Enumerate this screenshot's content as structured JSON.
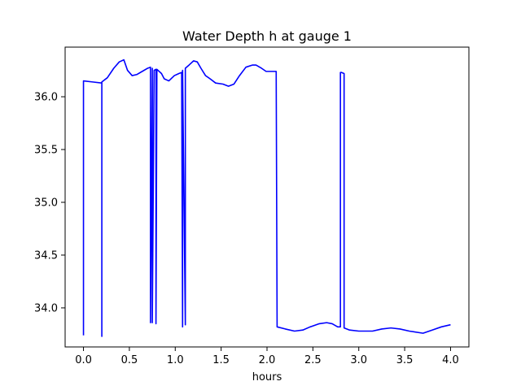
{
  "chart_data": {
    "type": "line",
    "title": "Water Depth h at gauge 1",
    "xlabel": "hours",
    "ylabel": "",
    "xlim": [
      -0.2,
      4.2
    ],
    "ylim": [
      33.63,
      36.47
    ],
    "xticks": [
      {
        "value": 0.0,
        "label": "0.0"
      },
      {
        "value": 0.5,
        "label": "0.5"
      },
      {
        "value": 1.0,
        "label": "1.0"
      },
      {
        "value": 1.5,
        "label": "1.5"
      },
      {
        "value": 2.0,
        "label": "2.0"
      },
      {
        "value": 2.5,
        "label": "2.5"
      },
      {
        "value": 3.0,
        "label": "3.0"
      },
      {
        "value": 3.5,
        "label": "3.5"
      },
      {
        "value": 4.0,
        "label": "4.0"
      }
    ],
    "yticks": [
      {
        "value": 34.0,
        "label": "34.0"
      },
      {
        "value": 34.5,
        "label": "34.5"
      },
      {
        "value": 35.0,
        "label": "35.0"
      },
      {
        "value": 35.5,
        "label": "35.5"
      },
      {
        "value": 36.0,
        "label": "36.0"
      }
    ],
    "grid": false,
    "legend": "none",
    "series": [
      {
        "color": "#0000ff",
        "x": [
          0.0,
          0.0,
          0.1,
          0.2,
          0.2,
          0.2,
          0.2,
          0.26,
          0.33,
          0.39,
          0.44,
          0.48,
          0.53,
          0.58,
          0.64,
          0.7,
          0.73,
          0.73,
          0.75,
          0.75,
          0.77,
          0.79,
          0.79,
          0.8,
          0.8,
          0.85,
          0.88,
          0.93,
          0.99,
          1.04,
          1.07,
          1.08,
          1.08,
          1.11,
          1.11,
          1.15,
          1.2,
          1.24,
          1.28,
          1.33,
          1.38,
          1.44,
          1.52,
          1.58,
          1.64,
          1.7,
          1.77,
          1.84,
          1.88,
          1.94,
          1.99,
          2.04,
          2.1,
          2.11,
          2.11,
          2.2,
          2.3,
          2.39,
          2.47,
          2.57,
          2.65,
          2.71,
          2.77,
          2.8,
          2.8,
          2.81,
          2.84,
          2.84,
          2.9,
          3.0,
          3.15,
          3.25,
          3.35,
          3.45,
          3.55,
          3.7,
          3.8,
          3.9,
          4.0
        ],
        "y": [
          33.74,
          36.15,
          36.14,
          36.13,
          33.73,
          36.13,
          36.14,
          36.18,
          36.27,
          36.33,
          36.35,
          36.25,
          36.2,
          36.21,
          36.24,
          36.27,
          36.28,
          33.86,
          36.27,
          33.86,
          36.25,
          36.26,
          33.85,
          36.25,
          36.26,
          36.22,
          36.17,
          36.15,
          36.2,
          36.22,
          36.23,
          33.82,
          36.25,
          33.84,
          36.27,
          36.3,
          36.34,
          36.33,
          36.27,
          36.2,
          36.17,
          36.13,
          36.12,
          36.1,
          36.12,
          36.2,
          36.28,
          36.3,
          36.3,
          36.27,
          36.24,
          36.24,
          36.24,
          33.82,
          33.82,
          33.8,
          33.78,
          33.79,
          33.82,
          33.85,
          33.86,
          33.85,
          33.82,
          33.82,
          36.23,
          36.23,
          36.22,
          33.81,
          33.79,
          33.78,
          33.78,
          33.8,
          33.81,
          33.8,
          33.78,
          33.76,
          33.79,
          33.82,
          33.84
        ]
      }
    ]
  }
}
